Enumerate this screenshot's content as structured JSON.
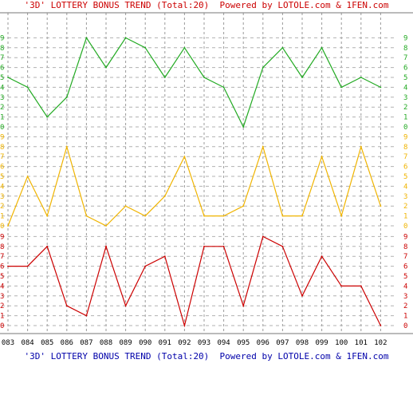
{
  "titles": {
    "top": "'3D' LOTTERY BONUS TREND (Total:20)  Powered by LOTOLE.com & 1FEN.com",
    "bottom": "'3D' LOTTERY BONUS TREND (Total:20)  Powered by LOTOLE.com & 1FEN.com"
  },
  "chart_data": {
    "type": "line",
    "title": "'3D' LOTTERY BONUS TREND (Total:20)  Powered by LOTOLE.com & 1FEN.com",
    "categories": [
      "083",
      "084",
      "085",
      "086",
      "087",
      "088",
      "089",
      "090",
      "091",
      "092",
      "093",
      "094",
      "095",
      "096",
      "097",
      "098",
      "099",
      "100",
      "101",
      "102"
    ],
    "ylim": [
      0,
      9
    ],
    "grid": true,
    "series": [
      {
        "color": "#22aa22",
        "values": [
          5,
          4,
          1,
          3,
          9,
          6,
          9,
          8,
          5,
          8,
          5,
          4,
          0,
          6,
          8,
          5,
          8,
          4,
          5,
          4
        ]
      },
      {
        "color": "#f0b400",
        "values": [
          0,
          5,
          1,
          8,
          1,
          0,
          2,
          1,
          3,
          7,
          1,
          1,
          2,
          8,
          1,
          1,
          7,
          1,
          8,
          2
        ]
      },
      {
        "color": "#cc0000",
        "values": [
          6,
          6,
          8,
          2,
          1,
          8,
          2,
          6,
          7,
          0,
          8,
          8,
          2,
          9,
          8,
          3,
          7,
          4,
          4,
          0
        ]
      }
    ]
  }
}
